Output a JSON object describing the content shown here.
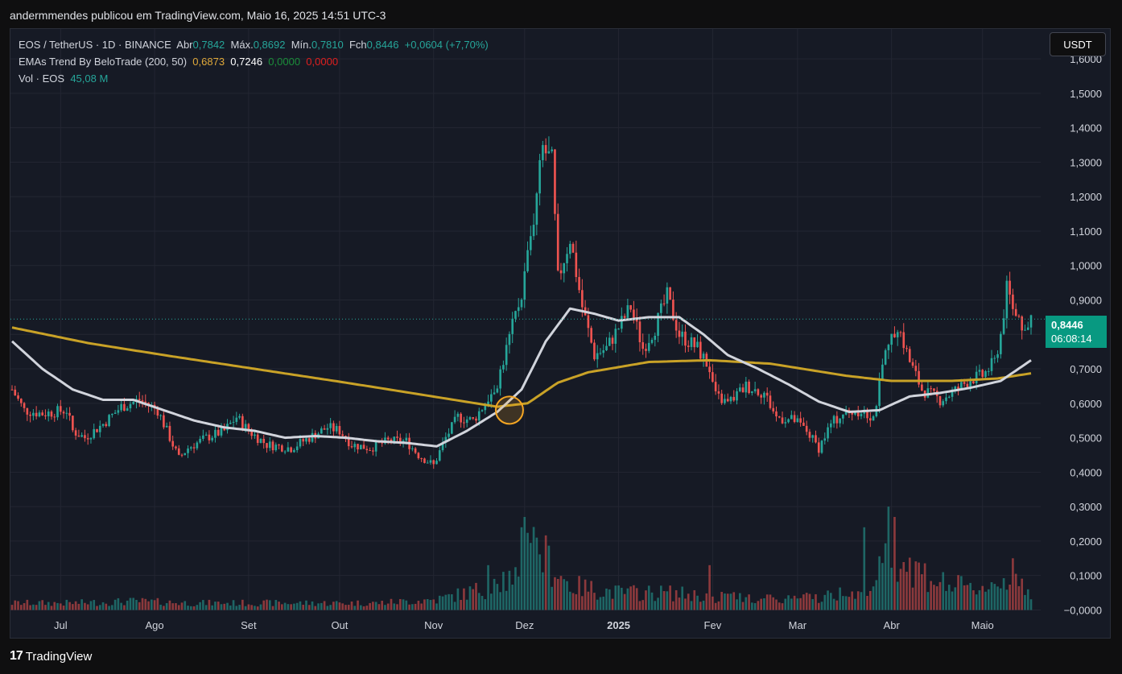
{
  "byline": "andermmendes publicou em TradingView.com, Maio 16, 2025 14:51 UTC-3",
  "legend": {
    "symbol": "EOS / TetherUS · 1D · BINANCE",
    "open_label": "Abr",
    "open_value": "0,7842",
    "high_label": "Máx.",
    "high_value": "0,8692",
    "low_label": "Mín.",
    "low_value": "0,7810",
    "close_label": "Fch",
    "close_value": "0,8446",
    "change": "+0,0604 (+7,70%)",
    "ema_title": "EMAs Trend By BeloTrade (200, 50)",
    "ema_200": "0,6873",
    "ema_50": "0,7246",
    "ema_v3": "0,0000",
    "ema_v4": "0,0000",
    "vol_title": "Vol · EOS",
    "vol_value": "45,08 M"
  },
  "currency_button": "USDT",
  "price_tag": {
    "value": "0,8446",
    "countdown": "06:08:14"
  },
  "footer_brand": "TradingView",
  "colors": {
    "up": "#26a69a",
    "down": "#ef5350",
    "ema200": "#c9a227",
    "ema50": "#d1d4dc",
    "background": "#161a25",
    "marker": "#f5a623"
  },
  "icons": {
    "logo": "tradingview-logo-icon"
  },
  "chart_data": {
    "type": "candlestick",
    "y_ticks": [
      "1,6000",
      "1,5000",
      "1,4000",
      "1,3000",
      "1,2000",
      "1,1000",
      "1,0000",
      "0,9000",
      "0,8000",
      "0,7000",
      "0,6000",
      "0,5000",
      "0,4000",
      "0,3000",
      "0,2000",
      "0,1000",
      "−0,0000"
    ],
    "ylim": [
      -0.02,
      1.64
    ],
    "x_labels": [
      {
        "label": "Jul",
        "day": 16
      },
      {
        "label": "Ago",
        "day": 47
      },
      {
        "label": "Set",
        "day": 78
      },
      {
        "label": "Out",
        "day": 108
      },
      {
        "label": "Nov",
        "day": 139
      },
      {
        "label": "Dez",
        "day": 169
      },
      {
        "label": "2025",
        "day": 200
      },
      {
        "label": "Fev",
        "day": 231
      },
      {
        "label": "Mar",
        "day": 259
      },
      {
        "label": "Abr",
        "day": 290
      },
      {
        "label": "Maio",
        "day": 320
      }
    ],
    "last_day": 336,
    "price_keyframes": [
      [
        0,
        0.64
      ],
      [
        4,
        0.58
      ],
      [
        10,
        0.57
      ],
      [
        18,
        0.58
      ],
      [
        20,
        0.52
      ],
      [
        24,
        0.5
      ],
      [
        30,
        0.54
      ],
      [
        36,
        0.59
      ],
      [
        42,
        0.61
      ],
      [
        48,
        0.58
      ],
      [
        52,
        0.5
      ],
      [
        55,
        0.44
      ],
      [
        58,
        0.47
      ],
      [
        64,
        0.5
      ],
      [
        70,
        0.52
      ],
      [
        74,
        0.56
      ],
      [
        78,
        0.52
      ],
      [
        84,
        0.48
      ],
      [
        92,
        0.47
      ],
      [
        98,
        0.5
      ],
      [
        104,
        0.53
      ],
      [
        108,
        0.52
      ],
      [
        112,
        0.48
      ],
      [
        118,
        0.47
      ],
      [
        124,
        0.49
      ],
      [
        130,
        0.49
      ],
      [
        134,
        0.45
      ],
      [
        139,
        0.42
      ],
      [
        143,
        0.5
      ],
      [
        147,
        0.56
      ],
      [
        152,
        0.55
      ],
      [
        156,
        0.6
      ],
      [
        160,
        0.66
      ],
      [
        164,
        0.79
      ],
      [
        168,
        0.92
      ],
      [
        172,
        1.14
      ],
      [
        175,
        1.34
      ],
      [
        178,
        1.3
      ],
      [
        180,
        0.96
      ],
      [
        184,
        1.08
      ],
      [
        188,
        0.88
      ],
      [
        192,
        0.74
      ],
      [
        196,
        0.76
      ],
      [
        200,
        0.82
      ],
      [
        204,
        0.88
      ],
      [
        208,
        0.76
      ],
      [
        212,
        0.82
      ],
      [
        216,
        0.91
      ],
      [
        220,
        0.8
      ],
      [
        226,
        0.76
      ],
      [
        230,
        0.7
      ],
      [
        232,
        0.62
      ],
      [
        236,
        0.6
      ],
      [
        242,
        0.65
      ],
      [
        248,
        0.63
      ],
      [
        252,
        0.56
      ],
      [
        258,
        0.55
      ],
      [
        262,
        0.52
      ],
      [
        266,
        0.47
      ],
      [
        270,
        0.54
      ],
      [
        274,
        0.57
      ],
      [
        280,
        0.58
      ],
      [
        284,
        0.56
      ],
      [
        288,
        0.74
      ],
      [
        292,
        0.83
      ],
      [
        296,
        0.72
      ],
      [
        300,
        0.64
      ],
      [
        306,
        0.61
      ],
      [
        310,
        0.63
      ],
      [
        316,
        0.67
      ],
      [
        320,
        0.68
      ],
      [
        324,
        0.72
      ],
      [
        326,
        0.8
      ],
      [
        328,
        0.93
      ],
      [
        330,
        0.88
      ],
      [
        332,
        0.86
      ],
      [
        334,
        0.79
      ],
      [
        336,
        0.84
      ]
    ],
    "ema200_keyframes": [
      [
        0,
        0.82
      ],
      [
        25,
        0.775
      ],
      [
        50,
        0.74
      ],
      [
        80,
        0.7
      ],
      [
        110,
        0.66
      ],
      [
        140,
        0.618
      ],
      [
        160,
        0.59
      ],
      [
        170,
        0.6
      ],
      [
        180,
        0.66
      ],
      [
        190,
        0.69
      ],
      [
        210,
        0.72
      ],
      [
        230,
        0.725
      ],
      [
        250,
        0.715
      ],
      [
        275,
        0.68
      ],
      [
        290,
        0.665
      ],
      [
        310,
        0.665
      ],
      [
        325,
        0.672
      ],
      [
        336,
        0.687
      ]
    ],
    "ema50_keyframes": [
      [
        0,
        0.78
      ],
      [
        10,
        0.7
      ],
      [
        20,
        0.64
      ],
      [
        30,
        0.61
      ],
      [
        40,
        0.61
      ],
      [
        50,
        0.58
      ],
      [
        60,
        0.55
      ],
      [
        70,
        0.53
      ],
      [
        80,
        0.52
      ],
      [
        90,
        0.5
      ],
      [
        100,
        0.505
      ],
      [
        110,
        0.5
      ],
      [
        120,
        0.49
      ],
      [
        130,
        0.485
      ],
      [
        140,
        0.475
      ],
      [
        150,
        0.52
      ],
      [
        160,
        0.575
      ],
      [
        168,
        0.64
      ],
      [
        176,
        0.78
      ],
      [
        184,
        0.875
      ],
      [
        192,
        0.86
      ],
      [
        200,
        0.84
      ],
      [
        210,
        0.85
      ],
      [
        220,
        0.85
      ],
      [
        228,
        0.8
      ],
      [
        236,
        0.74
      ],
      [
        246,
        0.7
      ],
      [
        256,
        0.655
      ],
      [
        266,
        0.605
      ],
      [
        276,
        0.575
      ],
      [
        286,
        0.58
      ],
      [
        296,
        0.62
      ],
      [
        306,
        0.63
      ],
      [
        316,
        0.645
      ],
      [
        326,
        0.665
      ],
      [
        336,
        0.725
      ]
    ],
    "volume_keyframes": [
      [
        0,
        0.02
      ],
      [
        20,
        0.02
      ],
      [
        40,
        0.025
      ],
      [
        60,
        0.02
      ],
      [
        80,
        0.02
      ],
      [
        100,
        0.02
      ],
      [
        120,
        0.02
      ],
      [
        140,
        0.03
      ],
      [
        150,
        0.05
      ],
      [
        160,
        0.07
      ],
      [
        168,
        0.13
      ],
      [
        172,
        0.2
      ],
      [
        176,
        0.15
      ],
      [
        184,
        0.07
      ],
      [
        200,
        0.05
      ],
      [
        216,
        0.05
      ],
      [
        230,
        0.04
      ],
      [
        250,
        0.03
      ],
      [
        270,
        0.04
      ],
      [
        282,
        0.07
      ],
      [
        290,
        0.18
      ],
      [
        296,
        0.13
      ],
      [
        306,
        0.08
      ],
      [
        316,
        0.06
      ],
      [
        326,
        0.08
      ],
      [
        330,
        0.1
      ],
      [
        336,
        0.05
      ]
    ],
    "volume_spikes": [
      [
        157,
        0.13
      ],
      [
        168,
        0.24
      ],
      [
        169,
        0.27
      ],
      [
        173,
        0.21
      ],
      [
        230,
        0.13
      ],
      [
        281,
        0.24
      ],
      [
        289,
        0.3
      ],
      [
        291,
        0.27
      ],
      [
        330,
        0.15
      ]
    ],
    "marker_day": 164,
    "marker_price": 0.58
  }
}
